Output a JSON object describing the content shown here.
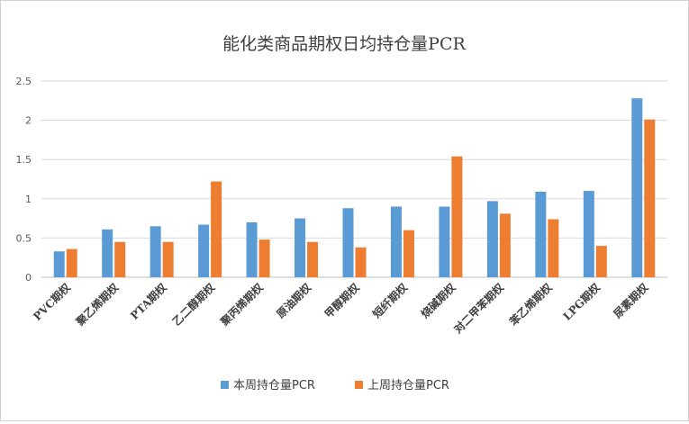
{
  "chart_data": {
    "type": "bar",
    "title": "能化类商品期权日均持仓量PCR",
    "xlabel": "",
    "ylabel": "",
    "ylim": [
      0,
      2.5
    ],
    "yticks": [
      "0",
      "0.5",
      "1",
      "1.5",
      "2",
      "2.5"
    ],
    "grid": true,
    "legend_position": "bottom",
    "categories": [
      "PVC期权",
      "聚乙烯期权",
      "PTA期权",
      "乙二醇期权",
      "聚丙烯期权",
      "原油期权",
      "甲醇期权",
      "短纤期权",
      "烧碱期权",
      "对二甲苯期权",
      "苯乙烯期权",
      "LPG期权",
      "尿素期权"
    ],
    "series": [
      {
        "name": "本周持仓量PCR",
        "color": "#5B9BD5",
        "values": [
          0.33,
          0.61,
          0.65,
          0.67,
          0.7,
          0.75,
          0.88,
          0.9,
          0.9,
          0.97,
          1.09,
          1.1,
          2.28
        ]
      },
      {
        "name": "上周持仓量PCR",
        "color": "#ED7D31",
        "values": [
          0.36,
          0.45,
          0.45,
          1.22,
          0.48,
          0.45,
          0.38,
          0.6,
          1.54,
          0.81,
          0.74,
          0.4,
          2.01
        ]
      }
    ]
  }
}
